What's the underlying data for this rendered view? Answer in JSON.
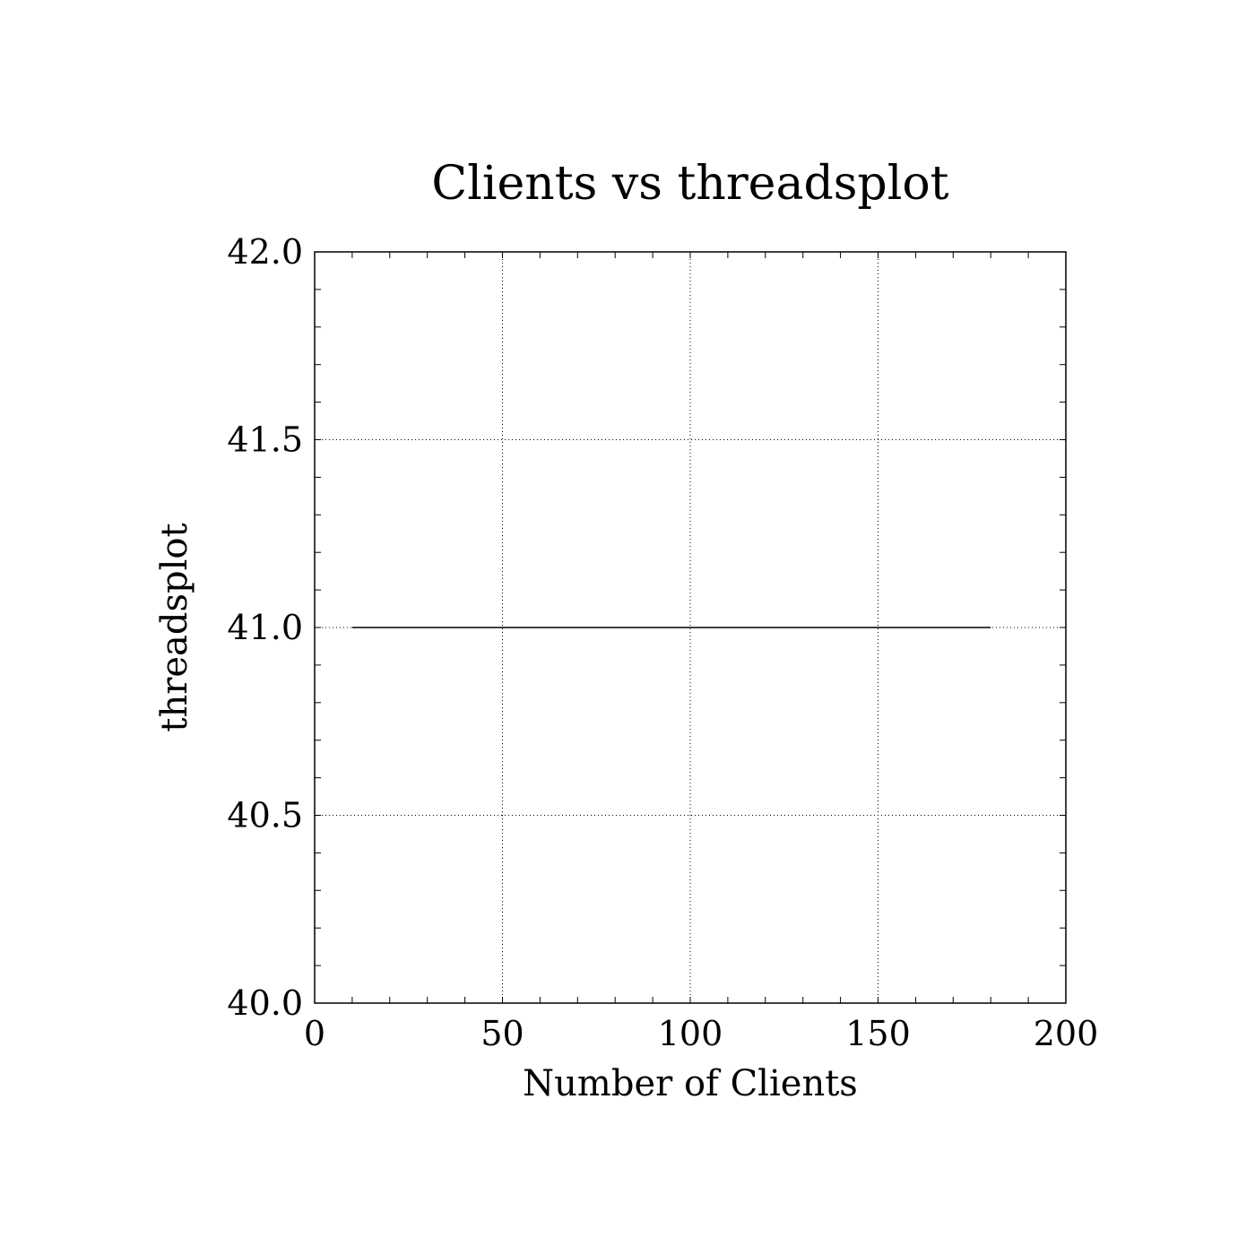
{
  "chart_data": {
    "type": "line",
    "title": "Clients vs threadsplot",
    "xlabel": "Number of Clients",
    "ylabel": "threadsplot",
    "xlim": [
      0,
      200
    ],
    "ylim": [
      40.0,
      42.0
    ],
    "x_ticks": [
      0,
      50,
      100,
      150,
      200
    ],
    "x_tick_labels": [
      "0",
      "50",
      "100",
      "150",
      "200"
    ],
    "y_ticks": [
      40.0,
      40.5,
      41.0,
      41.5,
      42.0
    ],
    "y_tick_labels": [
      "40.0",
      "40.5",
      "41.0",
      "41.5",
      "42.0"
    ],
    "x_minor_step": 10,
    "y_minor_step": 0.1,
    "grid": true,
    "grid_style": "dotted",
    "series": [
      {
        "x": [
          10,
          180
        ],
        "y": [
          41.0,
          41.0
        ],
        "color": "#000000"
      }
    ]
  }
}
